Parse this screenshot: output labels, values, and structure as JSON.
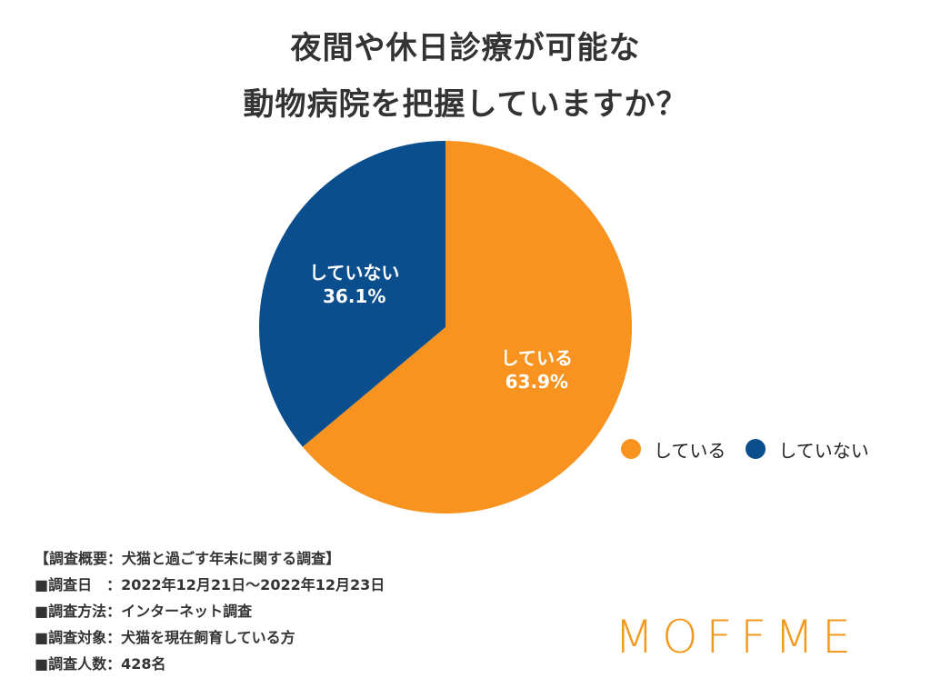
{
  "title": {
    "line1": "夜間や休日診療が可能な",
    "line2": "動物病院を把握していますか？"
  },
  "chart_data": {
    "type": "pie",
    "title": "夜間や休日診療が可能な動物病院を把握していますか？",
    "start_angle": "12 o'clock",
    "direction": "clockwise",
    "legend_position": "right",
    "slices": [
      {
        "label": "している",
        "value": 63.9,
        "value_label": "63.9%",
        "color": "#F7931E"
      },
      {
        "label": "していない",
        "value": 36.1,
        "value_label": "36.1%",
        "color": "#0A4E8E"
      }
    ]
  },
  "legend": [
    {
      "label": "している",
      "color": "#F7931E"
    },
    {
      "label": "していない",
      "color": "#0A4E8E"
    }
  ],
  "notes": [
    "【調査概要：犬猫と過ごす年末に関する調査】",
    "■調査日　：2022年12月21日〜2022年12月23日",
    "■調査方法：インターネット調査",
    "■調査対象：犬猫を現在飼育している方",
    "■調査人数：428名"
  ],
  "brand": {
    "logo_text": "MOFFME",
    "color": "#F39A1E"
  }
}
